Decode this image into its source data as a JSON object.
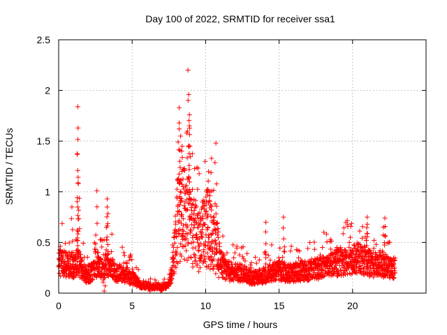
{
  "chart_data": {
    "type": "scatter",
    "title": "Day 100 of 2022, SRMTID for receiver ssa1",
    "xlabel": "GPS time / hours",
    "ylabel": "SRMTID / TECUs",
    "xlim": [
      0,
      25
    ],
    "ylim": [
      0,
      2.5
    ],
    "xticks": [
      0,
      5,
      10,
      15,
      20
    ],
    "xtick_labels": [
      "0",
      "5",
      "10",
      "15",
      "20"
    ],
    "yticks": [
      0,
      0.5,
      1,
      1.5,
      2,
      2.5
    ],
    "ytick_labels": [
      "0",
      "0.5",
      "1",
      "1.5",
      "2",
      "2.5"
    ],
    "grid": true,
    "marker": "+",
    "color": "#ff0000",
    "profile": [
      [
        0.0,
        0.3
      ],
      [
        0.2,
        0.3
      ],
      [
        0.5,
        0.28
      ],
      [
        0.8,
        0.28
      ],
      [
        1.0,
        0.27
      ],
      [
        1.2,
        0.3
      ],
      [
        1.5,
        0.27
      ],
      [
        1.8,
        0.18
      ],
      [
        2.2,
        0.2
      ],
      [
        2.5,
        0.25
      ],
      [
        2.8,
        0.25
      ],
      [
        3.0,
        0.22
      ],
      [
        3.3,
        0.3
      ],
      [
        3.6,
        0.25
      ],
      [
        3.8,
        0.2
      ],
      [
        4.2,
        0.2
      ],
      [
        4.6,
        0.18
      ],
      [
        5.0,
        0.15
      ],
      [
        5.3,
        0.12
      ],
      [
        5.6,
        0.07
      ],
      [
        6.0,
        0.07
      ],
      [
        6.5,
        0.06
      ],
      [
        7.0,
        0.06
      ],
      [
        7.5,
        0.08
      ],
      [
        7.7,
        0.2
      ],
      [
        7.9,
        0.45
      ],
      [
        8.1,
        0.7
      ],
      [
        8.4,
        0.8
      ],
      [
        8.7,
        0.75
      ],
      [
        9.0,
        0.7
      ],
      [
        9.3,
        0.55
      ],
      [
        9.6,
        0.5
      ],
      [
        9.9,
        0.6
      ],
      [
        10.2,
        0.65
      ],
      [
        10.5,
        0.5
      ],
      [
        10.8,
        0.45
      ],
      [
        11.0,
        0.3
      ],
      [
        11.5,
        0.22
      ],
      [
        12.0,
        0.2
      ],
      [
        12.5,
        0.2
      ],
      [
        13.0,
        0.16
      ],
      [
        13.5,
        0.15
      ],
      [
        14.0,
        0.18
      ],
      [
        14.5,
        0.2
      ],
      [
        15.0,
        0.22
      ],
      [
        15.5,
        0.2
      ],
      [
        16.0,
        0.2
      ],
      [
        16.5,
        0.22
      ],
      [
        17.0,
        0.22
      ],
      [
        17.5,
        0.25
      ],
      [
        18.0,
        0.25
      ],
      [
        18.5,
        0.28
      ],
      [
        19.0,
        0.3
      ],
      [
        19.5,
        0.3
      ],
      [
        20.0,
        0.33
      ],
      [
        20.5,
        0.35
      ],
      [
        21.0,
        0.3
      ],
      [
        21.5,
        0.28
      ],
      [
        22.0,
        0.28
      ],
      [
        22.5,
        0.25
      ],
      [
        22.9,
        0.25
      ]
    ],
    "extremes": [
      [
        1.3,
        1.84
      ],
      [
        1.32,
        1.63
      ],
      [
        1.28,
        1.37
      ],
      [
        1.34,
        1.08
      ],
      [
        1.3,
        0.85
      ],
      [
        0.9,
        0.85
      ],
      [
        2.6,
        1.01
      ],
      [
        3.3,
        0.93
      ],
      [
        3.3,
        0.85
      ],
      [
        8.8,
        2.2
      ],
      [
        8.85,
        1.96
      ],
      [
        8.2,
        1.83
      ],
      [
        8.9,
        1.76
      ],
      [
        8.2,
        1.68
      ],
      [
        8.9,
        1.65
      ],
      [
        8.3,
        1.55
      ],
      [
        8.4,
        1.45
      ],
      [
        10.7,
        1.48
      ],
      [
        10.4,
        1.33
      ],
      [
        10.2,
        1.2
      ],
      [
        14.1,
        0.7
      ],
      [
        15.3,
        0.75
      ],
      [
        21.0,
        0.75
      ],
      [
        22.2,
        0.74
      ],
      [
        21.0,
        0.68
      ],
      [
        22.1,
        0.65
      ],
      [
        3.1,
        0.02
      ],
      [
        6.2,
        0.02
      ],
      [
        7.0,
        0.03
      ]
    ],
    "n_points": 2600
  }
}
